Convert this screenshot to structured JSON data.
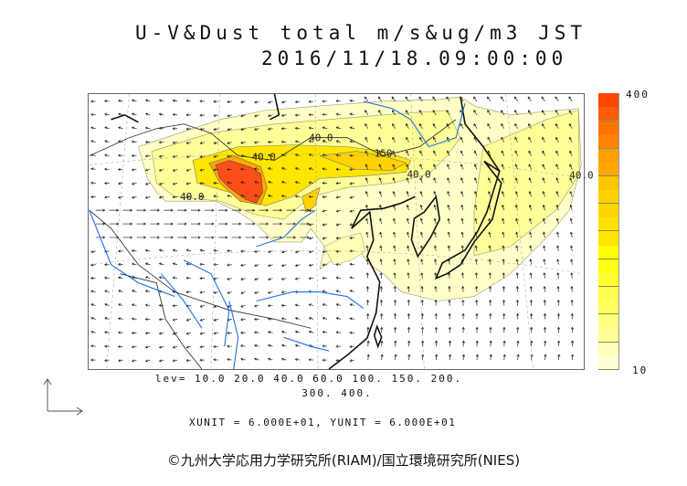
{
  "title": {
    "line1": "U-V&Dust total m/s&ug/m3 JST",
    "line2": "2016/11/18.09:00:00"
  },
  "colorbar": {
    "max_label": "400",
    "min_label": "10",
    "colors": [
      "#ff4500",
      "#ff5a0a",
      "#ff7300",
      "#ff8200",
      "#ffa000",
      "#ffa800",
      "#ffc400",
      "#ffd200",
      "#ffd500",
      "#ffe100",
      "#ffe600",
      "#ffff00",
      "#ffff10",
      "#ffff30",
      "#ffff50",
      "#ffff60",
      "#ffff80",
      "#ffff9a",
      "#ffffbb",
      "#ffffd5"
    ]
  },
  "legend": {
    "levels_line1": "lev= 10.0 20.0 40.0 60.0 100. 150. 200.",
    "levels_line2": "300. 400."
  },
  "units": "XUNIT = 6.000E+01, YUNIT = 6.000E+01",
  "contour_labels": [
    "40.0",
    "150.",
    "40.0",
    "40.0",
    "40.0",
    "40.0"
  ],
  "credit": "©九州大学応用力学研究所(RIAM)/国立環境研究所(NIES)",
  "colors": {
    "river": "#1e6ee6",
    "land": "#111111",
    "dust_red": "#ff4d1a"
  }
}
